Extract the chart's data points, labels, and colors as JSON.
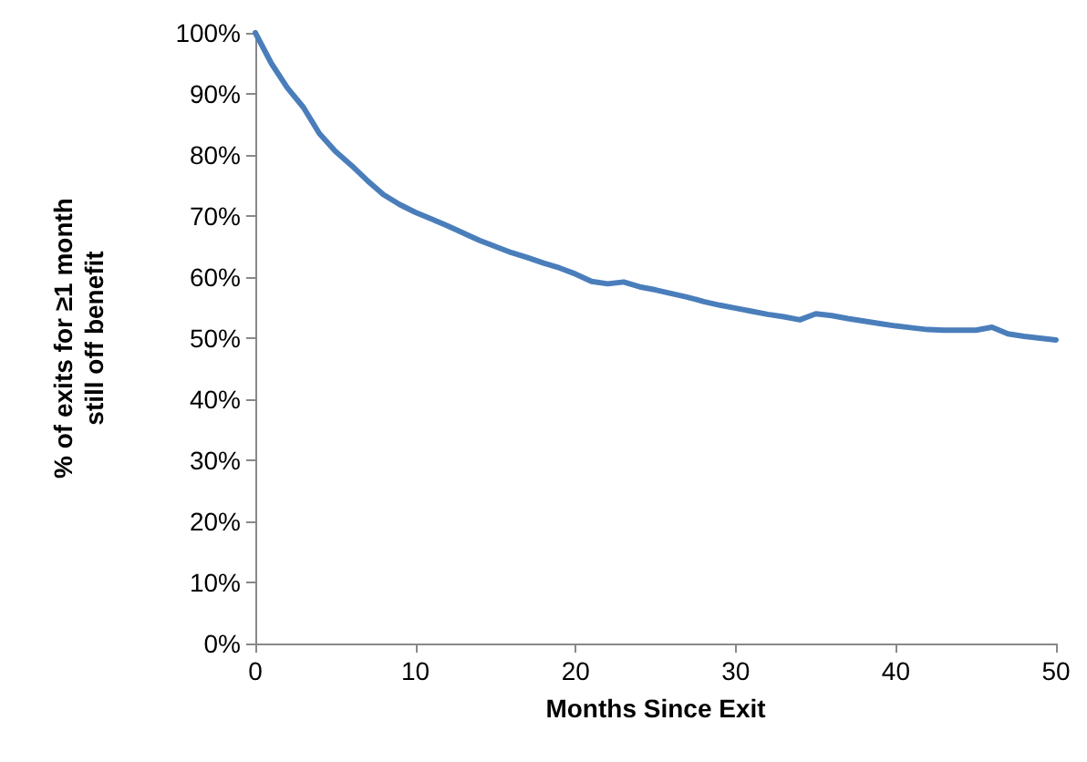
{
  "chart_data": {
    "type": "line",
    "xlabel": "Months Since Exit",
    "ylabel": "% of exits for ≥1 month still off benefit",
    "x": [
      0,
      1,
      2,
      3,
      4,
      5,
      6,
      7,
      8,
      9,
      10,
      11,
      12,
      13,
      14,
      15,
      16,
      17,
      18,
      19,
      20,
      21,
      22,
      23,
      24,
      25,
      26,
      27,
      28,
      29,
      30,
      31,
      32,
      33,
      34,
      35,
      36,
      37,
      38,
      39,
      40,
      41,
      42,
      43,
      44,
      45,
      46,
      47,
      48,
      49,
      50
    ],
    "series": [
      {
        "color": "#4a7ebb",
        "values": [
          100,
          95,
          91,
          87.8,
          83.5,
          80.6,
          78.3,
          75.8,
          73.5,
          71.9,
          70.6,
          69.5,
          68.4,
          67.2,
          66,
          65,
          64,
          63.2,
          62.3,
          61.5,
          60.5,
          59.3,
          58.9,
          59.2,
          58.4,
          57.9,
          57.3,
          56.7,
          56,
          55.4,
          54.9,
          54.4,
          53.9,
          53.5,
          53,
          54,
          53.7,
          53.2,
          52.8,
          52.4,
          52,
          51.7,
          51.4,
          51.3,
          51.3,
          51.3,
          51.8,
          50.7,
          50.3,
          50,
          49.7
        ]
      }
    ],
    "xlim": [
      0,
      50
    ],
    "xticks": [
      0,
      10,
      20,
      30,
      40,
      50
    ],
    "ylim": [
      0,
      100
    ],
    "yticks": [
      {
        "value": 0,
        "label": "0%"
      },
      {
        "value": 10,
        "label": "10%"
      },
      {
        "value": 20,
        "label": "20%"
      },
      {
        "value": 30,
        "label": "30%"
      },
      {
        "value": 40,
        "label": "40%"
      },
      {
        "value": 50,
        "label": "50%"
      },
      {
        "value": 60,
        "label": "60%"
      },
      {
        "value": 70,
        "label": "70%"
      },
      {
        "value": 80,
        "label": "80%"
      },
      {
        "value": 90,
        "label": "90%"
      },
      {
        "value": 100,
        "label": "100%"
      }
    ],
    "grid": false,
    "marker": "none",
    "line_style": "solid"
  }
}
